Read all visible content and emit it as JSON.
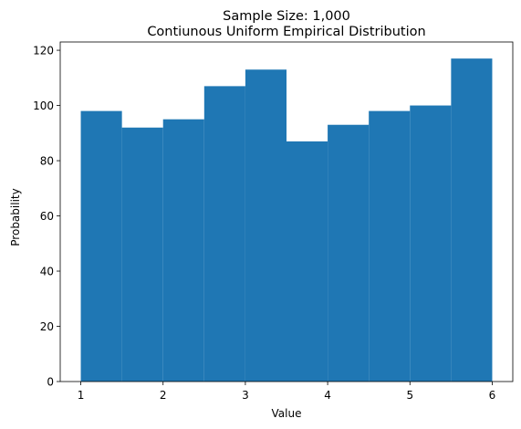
{
  "chart_data": {
    "type": "bar",
    "title": "Sample Size: 1,000",
    "subtitle": "Contiunous Uniform Empirical Distribution",
    "xlabel": "Value",
    "ylabel": "Probability",
    "bin_edges": [
      1.0,
      1.5,
      2.0,
      2.5,
      3.0,
      3.5,
      4.0,
      4.5,
      5.0,
      5.5,
      6.0
    ],
    "values": [
      98,
      92,
      95,
      107,
      113,
      87,
      93,
      98,
      100,
      117
    ],
    "xlim": [
      0.75,
      6.25
    ],
    "ylim": [
      0,
      123
    ],
    "xticks": [
      1,
      2,
      3,
      4,
      5,
      6
    ],
    "yticks": [
      0,
      20,
      40,
      60,
      80,
      100,
      120
    ],
    "bar_color": "#1f77b4",
    "grid": false
  }
}
